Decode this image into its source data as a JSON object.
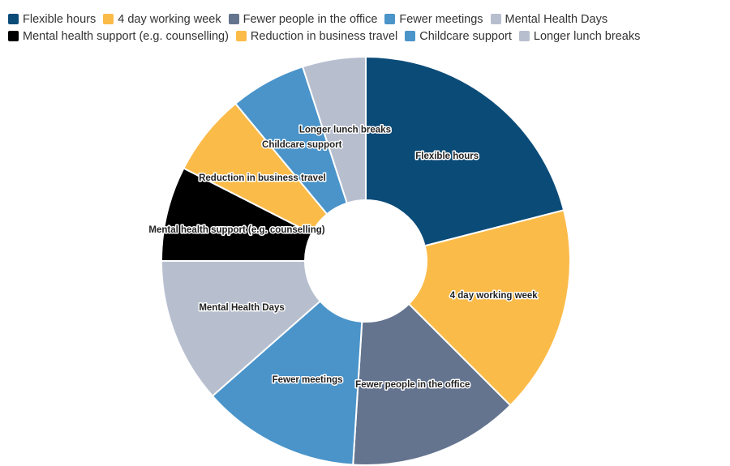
{
  "chart_data": {
    "type": "pie",
    "variant": "donut",
    "title": "",
    "legend_position": "top",
    "categories": [
      "Flexible hours",
      "4 day working week",
      "Fewer people in the office",
      "Fewer meetings",
      "Mental Health Days",
      "Mental health support (e.g. counselling)",
      "Reduction in business travel",
      "Childcare support",
      "Longer lunch breaks"
    ],
    "values": [
      21.0,
      16.5,
      13.5,
      12.5,
      11.5,
      7.5,
      6.5,
      6.0,
      5.0
    ],
    "colors": [
      "#0b4b78",
      "#fbbb49",
      "#64748f",
      "#4a94ca",
      "#b7bfcf",
      "#000000",
      "#fbbb49",
      "#4a94ca",
      "#b7bfcf"
    ]
  }
}
